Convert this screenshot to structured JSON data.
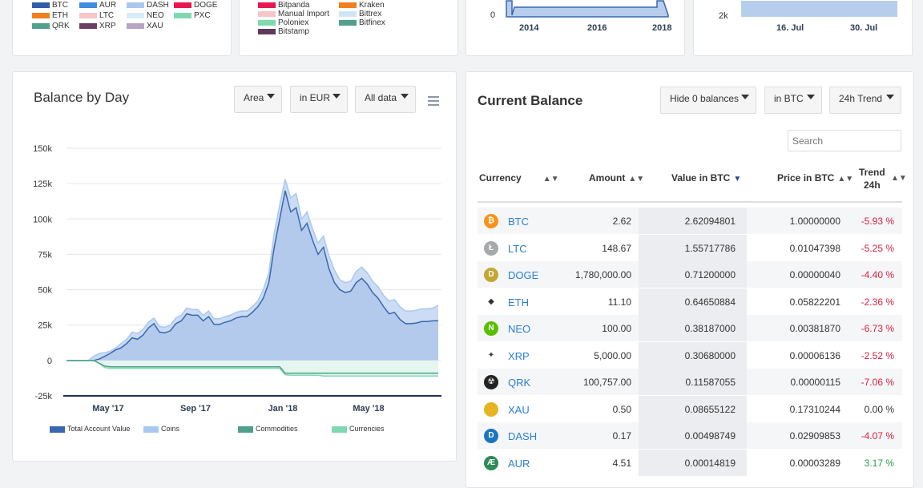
{
  "top_left_legend": {
    "items": [
      {
        "label": "BTC",
        "color": "#2f5ea8",
        "col": 0,
        "row": 0
      },
      {
        "label": "ETH",
        "color": "#f07f1f",
        "col": 0,
        "row": 1
      },
      {
        "label": "QRK",
        "color": "#4fa08c",
        "col": 0,
        "row": 2
      },
      {
        "label": "AUR",
        "color": "#3d8ddf",
        "col": 1,
        "row": 0
      },
      {
        "label": "LTC",
        "color": "#f7c6c6",
        "col": 1,
        "row": 1
      },
      {
        "label": "XRP",
        "color": "#6b3f62",
        "col": 1,
        "row": 2
      },
      {
        "label": "DASH",
        "color": "#a9c8ef",
        "col": 2,
        "row": 0
      },
      {
        "label": "NEO",
        "color": "#d8ecf7",
        "col": 2,
        "row": 1
      },
      {
        "label": "XAU",
        "color": "#b7a5c4",
        "col": 2,
        "row": 2
      },
      {
        "label": "DOGE",
        "color": "#e8174f",
        "col": 3,
        "row": 0
      },
      {
        "label": "PXC",
        "color": "#7fd8b0",
        "col": 3,
        "row": 1
      }
    ]
  },
  "top_mid_legend": {
    "items": [
      {
        "label": "Bitpanda",
        "color": "#e8174f",
        "col": 0,
        "row": 0
      },
      {
        "label": "Manual Import",
        "color": "#f7c6c6",
        "col": 0,
        "row": 1
      },
      {
        "label": "Poloniex",
        "color": "#7fd8b0",
        "col": 0,
        "row": 2
      },
      {
        "label": "Bitstamp",
        "color": "#5b3a5b",
        "col": 0,
        "row": 3
      },
      {
        "label": "Kraken",
        "color": "#f07f1f",
        "col": 1,
        "row": 0
      },
      {
        "label": "Bittrex",
        "color": "#d0e6f7",
        "col": 1,
        "row": 1
      },
      {
        "label": "Bitfinex",
        "color": "#4fa08c",
        "col": 1,
        "row": 2
      }
    ]
  },
  "top_chart_3": {
    "y_tick": "0",
    "x_ticks": [
      "2014",
      "2016",
      "2018"
    ]
  },
  "top_chart_4": {
    "y_tick": "2k",
    "x_ticks": [
      "16. Jul",
      "30. Jul"
    ]
  },
  "balance_by_day": {
    "title": "Balance by Day",
    "dropdowns": {
      "type": "Area",
      "currency": "in EUR",
      "range": "All data"
    }
  },
  "chart_data": {
    "type": "area",
    "title": "Balance by Day",
    "xlabel": "",
    "ylabel": "",
    "ylim": [
      -25000,
      150000
    ],
    "y_ticks": [
      "150k",
      "125k",
      "100k",
      "75k",
      "50k",
      "25k",
      "0",
      "-25k"
    ],
    "x_ticks": [
      "May '17",
      "Sep '17",
      "Jan '18",
      "May '18"
    ],
    "legend_position": "bottom",
    "series": [
      {
        "name": "Total Account Value",
        "color": "#3a67b0",
        "values": [
          0,
          0,
          0,
          0,
          0,
          0,
          1000,
          3000,
          5000,
          7500,
          9000,
          12000,
          16000,
          15000,
          18000,
          23000,
          26000,
          20000,
          19500,
          21000,
          26000,
          28000,
          33000,
          32000,
          32000,
          28000,
          31000,
          25500,
          25500,
          27000,
          28000,
          30000,
          31000,
          31000,
          34000,
          38000,
          44000,
          55000,
          80000,
          100000,
          120000,
          105000,
          108000,
          92000,
          97000,
          85000,
          75000,
          80000,
          65000,
          55000,
          50000,
          48000,
          49000,
          55000,
          58000,
          54000,
          48000,
          44000,
          38000,
          33000,
          34000,
          29000,
          26000,
          26000,
          26500,
          27500,
          27500,
          28000,
          28000
        ]
      },
      {
        "name": "Coins",
        "color": "#a9c8ef",
        "values": [
          0,
          0,
          0,
          0,
          0,
          3000,
          5000,
          5500,
          6500,
          9000,
          12000,
          15000,
          20000,
          19000,
          22000,
          27000,
          30000,
          24000,
          23500,
          25000,
          30000,
          32000,
          37000,
          36000,
          36000,
          32000,
          35000,
          29500,
          29500,
          31000,
          32000,
          34000,
          35000,
          35000,
          38000,
          42000,
          50000,
          62000,
          90000,
          110000,
          128000,
          115000,
          118000,
          100000,
          105000,
          93000,
          83000,
          88000,
          74000,
          64000,
          57000,
          55000,
          56000,
          63000,
          66000,
          62000,
          56000,
          52000,
          46000,
          42000,
          43000,
          38000,
          35000,
          35000,
          35500,
          36500,
          36500,
          37000,
          39000
        ]
      },
      {
        "name": "Commodities",
        "color": "#4fa08c",
        "values": [
          0,
          0,
          0,
          0,
          0,
          0,
          -2000,
          -4000,
          -4500,
          -4500,
          -4500,
          -4500,
          -4500,
          -4500,
          -4500,
          -4500,
          -4500,
          -4500,
          -4500,
          -4500,
          -4500,
          -4500,
          -4500,
          -4500,
          -4500,
          -4500,
          -4500,
          -4500,
          -4500,
          -4500,
          -4500,
          -4500,
          -4500,
          -4500,
          -4500,
          -4500,
          -4500,
          -4500,
          -4500,
          -4500,
          -9000,
          -9000,
          -9000,
          -9000,
          -9000,
          -9000,
          -9000,
          -9000,
          -9000,
          -9000,
          -9000,
          -9000,
          -9000,
          -9000,
          -9000,
          -9000,
          -9000,
          -9000,
          -9000,
          -9000,
          -9000,
          -9000,
          -9000,
          -9000,
          -9000,
          -9000,
          -9000,
          -9000,
          -9000
        ]
      },
      {
        "name": "Currencies",
        "color": "#7fd8b0",
        "values": [
          0,
          0,
          0,
          0,
          0,
          0,
          -2000,
          -5000,
          -5500,
          -5500,
          -5500,
          -5500,
          -5500,
          -5500,
          -5500,
          -5500,
          -5500,
          -5500,
          -5500,
          -5500,
          -5500,
          -5500,
          -5500,
          -5500,
          -5500,
          -5500,
          -5500,
          -5500,
          -5500,
          -5500,
          -5500,
          -5500,
          -5500,
          -5500,
          -5500,
          -5500,
          -5500,
          -5500,
          -5500,
          -5500,
          -10000,
          -10500,
          -10500,
          -10500,
          -10500,
          -10500,
          -10500,
          -11000,
          -11000,
          -11000,
          -11000,
          -11000,
          -11000,
          -11000,
          -11000,
          -11000,
          -11000,
          -11000,
          -11000,
          -11000,
          -11000,
          -11000,
          -11000,
          -11000,
          -11000,
          -11000,
          -11000,
          -11000,
          -11000
        ]
      }
    ]
  },
  "current_balance": {
    "title": "Current Balance",
    "dropdowns": {
      "zero": "Hide 0 balances",
      "currency": "in BTC",
      "trend": "24h Trend"
    },
    "search_placeholder": "Search",
    "columns": {
      "currency": "Currency",
      "amount": "Amount",
      "value": "Value in BTC",
      "price": "Price in BTC",
      "trend_1": "Trend",
      "trend_2": "24h"
    },
    "rows": [
      {
        "name": "BTC",
        "icon": "bitcoin-icon",
        "icon_color": "#f7931a",
        "glyph": "₿",
        "amount": "2.62",
        "value": "2.62094801",
        "price": "1.00000000",
        "trend": "-5.93 %",
        "dir": "neg"
      },
      {
        "name": "LTC",
        "icon": "litecoin-icon",
        "icon_color": "#a6a9aa",
        "glyph": "Ł",
        "amount": "148.67",
        "value": "1.55717786",
        "price": "0.01047398",
        "trend": "-5.25 %",
        "dir": "neg"
      },
      {
        "name": "DOGE",
        "icon": "dogecoin-icon",
        "icon_color": "#c3a634",
        "glyph": "D",
        "amount": "1,780,000.00",
        "value": "0.71200000",
        "price": "0.00000040",
        "trend": "-4.40 %",
        "dir": "neg"
      },
      {
        "name": "ETH",
        "icon": "ethereum-icon",
        "icon_color": "#ffffff",
        "glyph": "◆",
        "amount": "11.10",
        "value": "0.64650884",
        "price": "0.05822201",
        "trend": "-2.36 %",
        "dir": "neg"
      },
      {
        "name": "NEO",
        "icon": "neo-icon",
        "icon_color": "#58bf00",
        "glyph": "N",
        "amount": "100.00",
        "value": "0.38187000",
        "price": "0.00381870",
        "trend": "-6.73 %",
        "dir": "neg"
      },
      {
        "name": "XRP",
        "icon": "ripple-icon",
        "icon_color": "#ffffff",
        "glyph": "✦",
        "amount": "5,000.00",
        "value": "0.30680000",
        "price": "0.00006136",
        "trend": "-2.52 %",
        "dir": "neg"
      },
      {
        "name": "QRK",
        "icon": "quark-icon",
        "icon_color": "#222222",
        "glyph": "☢",
        "amount": "100,757.00",
        "value": "0.11587055",
        "price": "0.00000115",
        "trend": "-7.06 %",
        "dir": "neg"
      },
      {
        "name": "XAU",
        "icon": "gold-icon",
        "icon_color": "#e6b422",
        "glyph": "",
        "amount": "0.50",
        "value": "0.08655122",
        "price": "0.17310244",
        "trend": "0.00 %",
        "dir": "neu"
      },
      {
        "name": "DASH",
        "icon": "dash-icon",
        "icon_color": "#1c75bc",
        "glyph": "D",
        "amount": "0.17",
        "value": "0.00498749",
        "price": "0.02909853",
        "trend": "-4.07 %",
        "dir": "neg"
      },
      {
        "name": "AUR",
        "icon": "auroracoin-icon",
        "icon_color": "#2e8b57",
        "glyph": "Æ",
        "amount": "4.51",
        "value": "0.00014819",
        "price": "0.00003289",
        "trend": "3.17 %",
        "dir": "pos"
      }
    ]
  }
}
